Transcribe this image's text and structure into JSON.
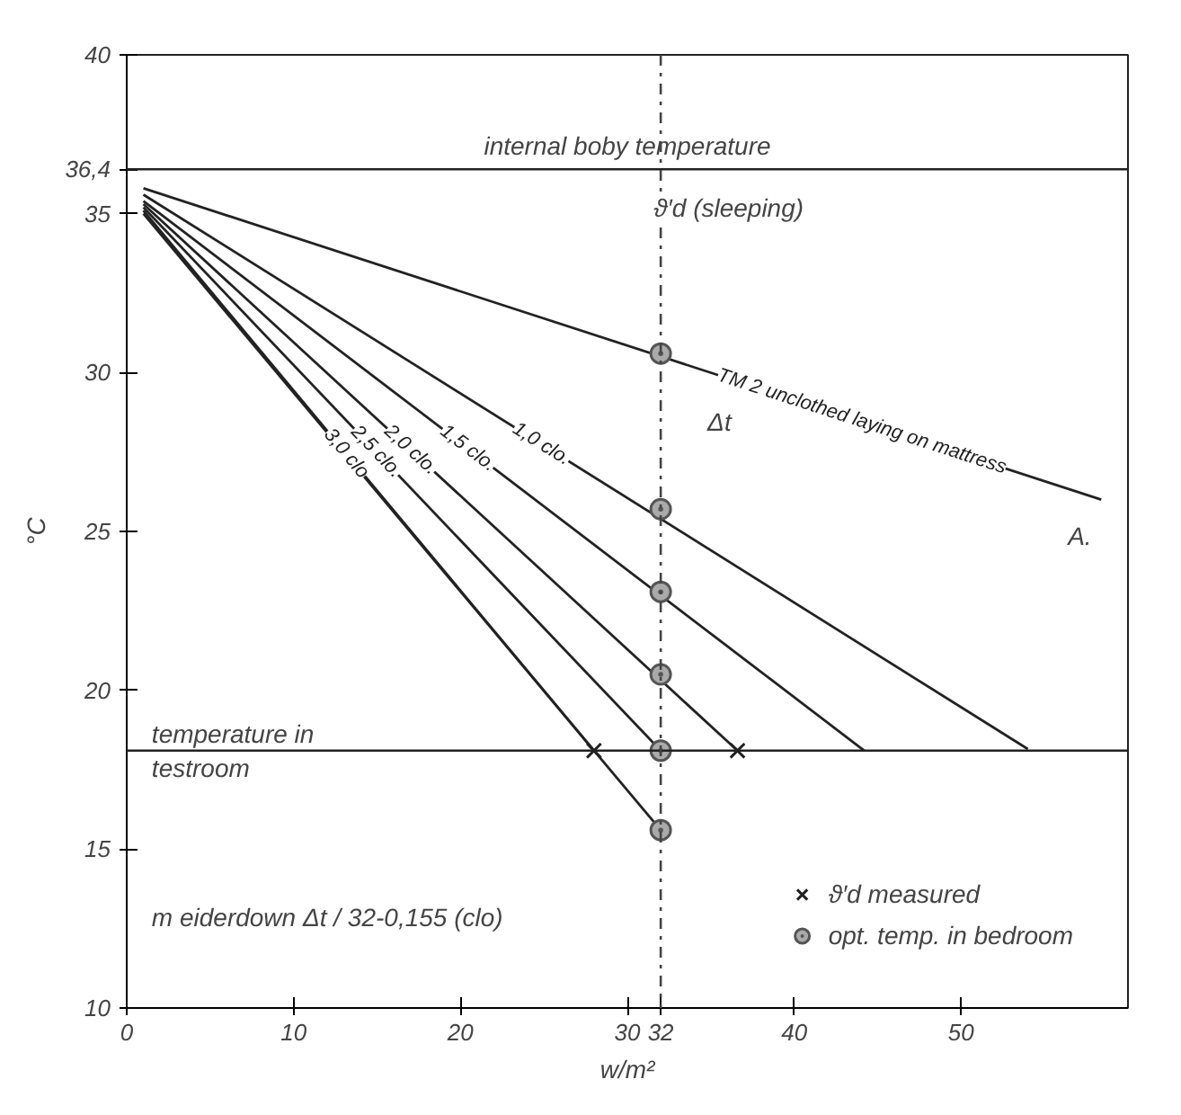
{
  "chart_data": {
    "type": "line",
    "xlabel": "w/m²",
    "ylabel": "°C",
    "xlim": [
      0,
      60
    ],
    "ylim": [
      10,
      40
    ],
    "xticks": [
      0,
      10,
      20,
      30,
      32,
      40,
      50
    ],
    "yticks": [
      10,
      15,
      20,
      25,
      30,
      35,
      {
        "value": 36.4,
        "label": "36,4"
      },
      40
    ],
    "grid": false,
    "legend": "bottom right",
    "series": [
      {
        "name": "TM 2 unclothed laying on mattress",
        "color": "#222222",
        "x": [
          1,
          58.4
        ],
        "values": [
          35.8,
          26.0
        ],
        "marker": "none"
      },
      {
        "name": "1,0 clo.",
        "color": "#222222",
        "x": [
          1,
          54
        ],
        "values": [
          35.6,
          18.15
        ],
        "marker": "none"
      },
      {
        "name": "1,5 clo.",
        "color": "#222222",
        "x": [
          1,
          44.2
        ],
        "values": [
          35.4,
          18.1
        ],
        "marker": "none"
      },
      {
        "name": "2,0 clo.",
        "color": "#222222",
        "x": [
          1,
          36.6
        ],
        "values": [
          35.3,
          18.1
        ],
        "marker": "none"
      },
      {
        "name": "2,5 clo.",
        "color": "#222222",
        "x": [
          1,
          32
        ],
        "values": [
          35.2,
          18.1
        ],
        "marker": "none"
      },
      {
        "name": "3,0 clo",
        "color": "#222222",
        "x": [
          1,
          28
        ],
        "values": [
          35.1,
          18.1
        ],
        "marker": "none"
      },
      {
        "color": "#222222",
        "x": [
          1,
          32
        ],
        "values": [
          35.0,
          15.6
        ],
        "marker": "none"
      },
      {
        "type": "scatter",
        "name": "ϑ′d measured",
        "color": "#222222",
        "x": [
          28,
          36.6
        ],
        "values": [
          18.1,
          18.1
        ],
        "marker": "cross"
      },
      {
        "type": "scatter",
        "name": "opt. temp. in bedroom",
        "color": "#555555",
        "x": [
          32,
          32,
          32,
          32,
          32,
          32
        ],
        "values": [
          30.6,
          25.7,
          23.1,
          20.5,
          18.1,
          15.6
        ],
        "marker": "circle"
      }
    ],
    "ref_lines": [
      {
        "axis": "y",
        "value": 36.4,
        "label": "internal boby temperature",
        "color": "#222222"
      },
      {
        "axis": "y",
        "value": 18.1,
        "label": "temperature in\ntestroom",
        "color": "#222222"
      },
      {
        "axis": "x",
        "value": 32,
        "label": "ϑ′d (sleeping)",
        "color": "#444444",
        "line_style": "dashdot"
      }
    ],
    "annotations": [
      "Δt",
      "A.",
      "m eiderdown  Δt / 32-0,155 (clo)"
    ]
  }
}
